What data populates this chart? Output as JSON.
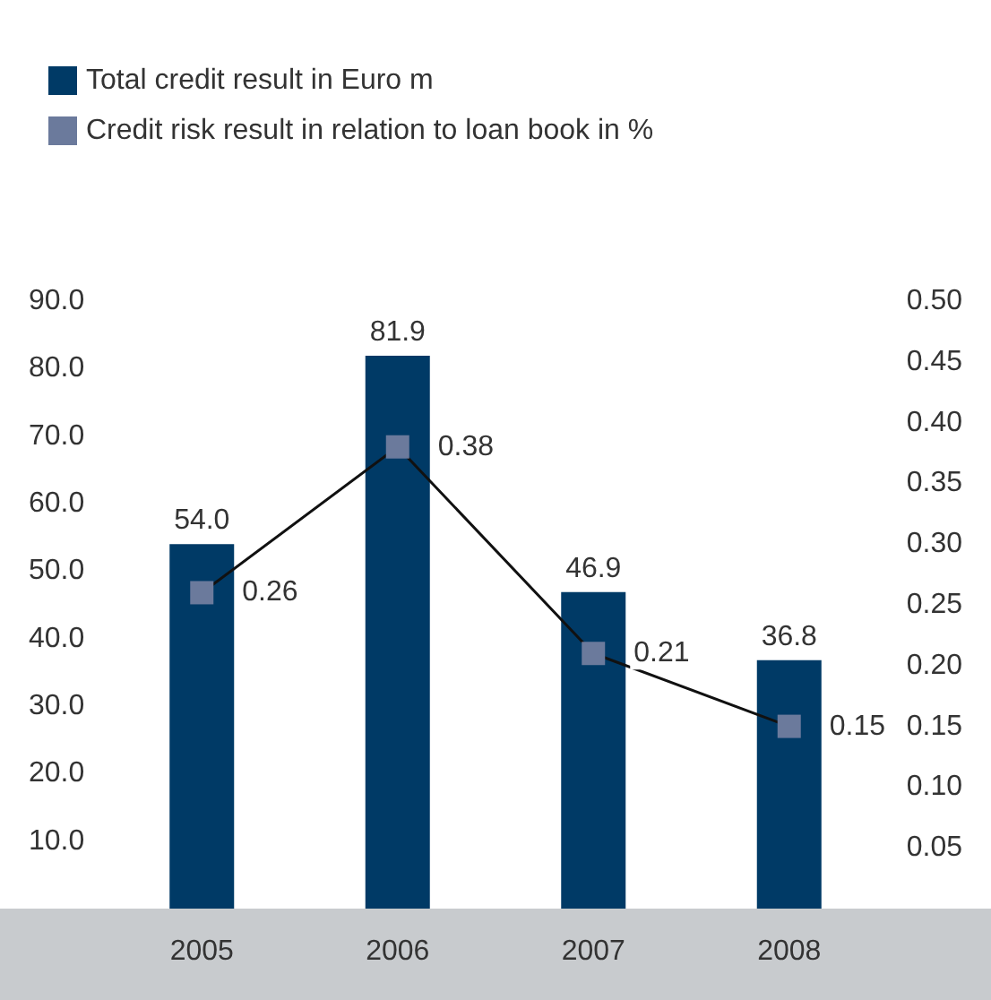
{
  "chart_data": {
    "type": "bar",
    "categories": [
      "2005",
      "2006",
      "2007",
      "2008"
    ],
    "series": [
      {
        "name": "Total credit result in Euro m",
        "color": "#003a66",
        "values": [
          54.0,
          81.9,
          46.9,
          36.8
        ],
        "value_labels": [
          "54.0",
          "81.9",
          "46.9",
          "36.8"
        ]
      },
      {
        "name": "Credit risk result in relation to loan book in %",
        "type": "line",
        "axis": "y2",
        "color": "#6b7a9c",
        "values": [
          0.26,
          0.38,
          0.21,
          0.15
        ],
        "value_labels": [
          "0.26",
          "0.38",
          "0.21",
          "0.15"
        ]
      }
    ],
    "ylim": [
      0,
      90
    ],
    "yticks": [
      {
        "value": 10,
        "label": "10.0"
      },
      {
        "value": 20,
        "label": "20.0"
      },
      {
        "value": 30,
        "label": "30.0"
      },
      {
        "value": 40,
        "label": "40.0"
      },
      {
        "value": 50,
        "label": "50.0"
      },
      {
        "value": 60,
        "label": "60.0"
      },
      {
        "value": 70,
        "label": "70.0"
      },
      {
        "value": 80,
        "label": "80.0"
      },
      {
        "value": 90,
        "label": "90.0"
      }
    ],
    "y2lim": [
      0,
      0.5
    ],
    "y2ticks": [
      {
        "value": 0.05,
        "label": "0.05"
      },
      {
        "value": 0.1,
        "label": "0.10"
      },
      {
        "value": 0.15,
        "label": "0.15"
      },
      {
        "value": 0.2,
        "label": "0.20"
      },
      {
        "value": 0.25,
        "label": "0.25"
      },
      {
        "value": 0.3,
        "label": "0.30"
      },
      {
        "value": 0.35,
        "label": "0.35"
      },
      {
        "value": 0.4,
        "label": "0.40"
      },
      {
        "value": 0.45,
        "label": "0.45"
      },
      {
        "value": 0.5,
        "label": "0.50"
      }
    ],
    "legend": "top left",
    "marker": "square",
    "grid": false
  }
}
